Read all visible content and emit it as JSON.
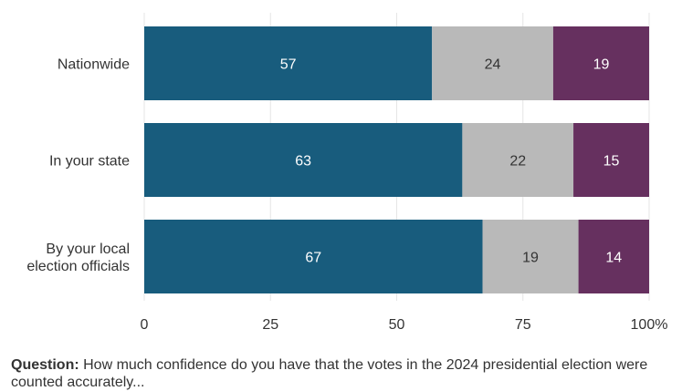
{
  "chart_data": {
    "type": "bar",
    "orientation": "horizontal",
    "stacked": true,
    "categories": [
      [
        "Nationwide"
      ],
      [
        "In your state"
      ],
      [
        "By your local",
        "election officials"
      ]
    ],
    "series": [
      {
        "values": [
          57,
          63,
          67
        ],
        "color": "#185c7d",
        "label_color": "#ffffff"
      },
      {
        "values": [
          24,
          22,
          19
        ],
        "color": "#b9b9b9",
        "label_color": "#333333"
      },
      {
        "values": [
          19,
          15,
          14
        ],
        "color": "#66305f",
        "label_color": "#ffffff"
      }
    ],
    "xlim": [
      0,
      100
    ],
    "xticks": [
      "0",
      "25",
      "50",
      "75",
      "100%"
    ],
    "grid": true,
    "legend": "none"
  },
  "caption": {
    "prefix": "Question:",
    "text": " How much confidence do you have that the votes in the 2024 presidential election were counted accurately..."
  }
}
